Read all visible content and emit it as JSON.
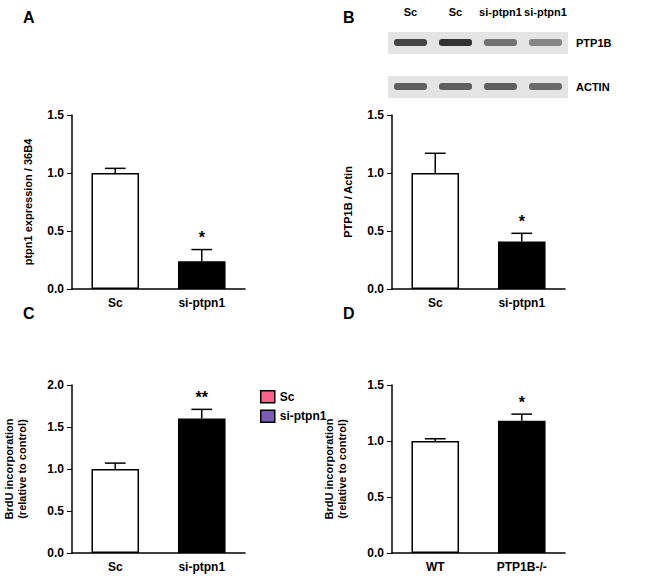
{
  "chart_data": [
    {
      "type": "bar",
      "title": "A",
      "categories": [
        "Sc",
        "si-ptpn1"
      ],
      "values": [
        1.0,
        0.24
      ],
      "errors": [
        0.04,
        0.1
      ],
      "colors": [
        "#ffffff",
        "#000000"
      ],
      "y_label": "ptpn1 expression / 36B4",
      "ylim": [
        0,
        1.5
      ],
      "yticks": [
        {
          "value": 0,
          "label": "0.0"
        },
        {
          "value": 0.5,
          "label": "0.5"
        },
        {
          "value": 1,
          "label": "1.0"
        },
        {
          "value": 1.5,
          "label": "1.5"
        }
      ],
      "annotations": [
        {
          "text": "*",
          "category": "si-ptpn1"
        }
      ],
      "grid": false
    },
    {
      "type": "bar",
      "title": "B",
      "categories": [
        "Sc",
        "si-ptpn1"
      ],
      "values": [
        1.0,
        0.41
      ],
      "errors": [
        0.17,
        0.07
      ],
      "colors": [
        "#ffffff",
        "#000000"
      ],
      "y_label": "PTP1B / Actin",
      "ylim": [
        0,
        1.5
      ],
      "yticks": [
        {
          "value": 0,
          "label": "0.0"
        },
        {
          "value": 0.5,
          "label": "0.5"
        },
        {
          "value": 1,
          "label": "1.0"
        },
        {
          "value": 1.5,
          "label": "1.5"
        }
      ],
      "annotations": [
        {
          "text": "*",
          "category": "si-ptpn1"
        }
      ],
      "grid": false
    },
    {
      "type": "bar",
      "title": "C",
      "categories": [
        "Sc",
        "si-ptpn1"
      ],
      "series": [
        {
          "name": "Sc",
          "color": "#ffffff",
          "values": [
            1.0,
            null
          ],
          "errors": [
            0.07,
            null
          ]
        },
        {
          "name": "si-ptpn1",
          "color": "#000000",
          "values": [
            null,
            1.6
          ],
          "errors": [
            null,
            0.11
          ]
        }
      ],
      "stacked": true,
      "legend": "right",
      "y_label": "BrdU incorporation\n(relative to control)",
      "ylim": [
        0,
        2
      ],
      "yticks": [
        {
          "value": 0,
          "label": "0.0"
        },
        {
          "value": 0.5,
          "label": "0.5"
        },
        {
          "value": 1,
          "label": "1.0"
        },
        {
          "value": 1.5,
          "label": "1.5"
        },
        {
          "value": 2,
          "label": "2.0"
        }
      ],
      "annotations": [
        {
          "text": "**",
          "category": "si-ptpn1"
        }
      ],
      "grid": false
    },
    {
      "type": "bar",
      "title": "D",
      "categories": [
        "WT",
        "PTP1B-/-"
      ],
      "values": [
        1.0,
        1.18
      ],
      "errors": [
        0.02,
        0.06
      ],
      "colors": [
        "#ffffff",
        "#000000"
      ],
      "y_label": "BrdU incorporation\n(relative to control)",
      "ylim": [
        0,
        1.5
      ],
      "yticks": [
        {
          "value": 0,
          "label": "0.0"
        },
        {
          "value": 0.5,
          "label": "0.5"
        },
        {
          "value": 1,
          "label": "1.0"
        },
        {
          "value": 1.5,
          "label": "1.5"
        }
      ],
      "annotations": [
        {
          "text": "*",
          "category": "PTP1B-/-"
        }
      ],
      "grid": false
    }
  ],
  "blot": {
    "lanes": [
      "Sc",
      "Sc",
      "si-ptpn1",
      "si-ptpn1"
    ],
    "rows": [
      "PTP1B",
      "ACTIN"
    ]
  }
}
